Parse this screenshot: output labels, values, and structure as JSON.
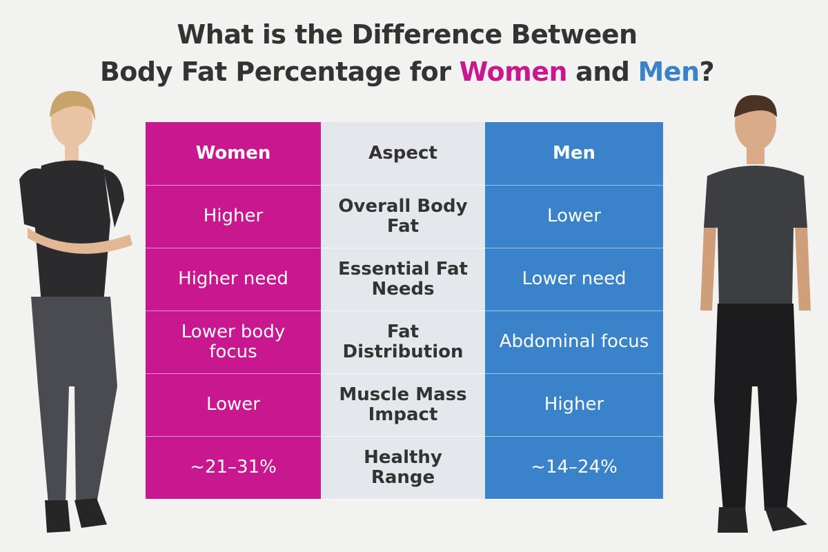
{
  "header": {
    "title_line1": "What is the Difference Between",
    "title_line2": [
      "Body Fat Percentage for",
      "Women",
      "and",
      "Men",
      "?"
    ]
  },
  "table": {
    "columns": [
      "Women",
      "Aspect",
      "Men"
    ],
    "rows": [
      [
        "Higher",
        "Overall Body Fat",
        "Lower"
      ],
      [
        "Higher need",
        "Essential Fat Needs",
        "Lower need"
      ],
      [
        "Lower body focus",
        "Fat Distribution",
        "Abdominal focus"
      ],
      [
        "Lower",
        "Muscle Mass Impact",
        "Higher"
      ],
      [
        "~21–31%",
        "Healthy Range",
        "~14–24%"
      ]
    ]
  }
}
